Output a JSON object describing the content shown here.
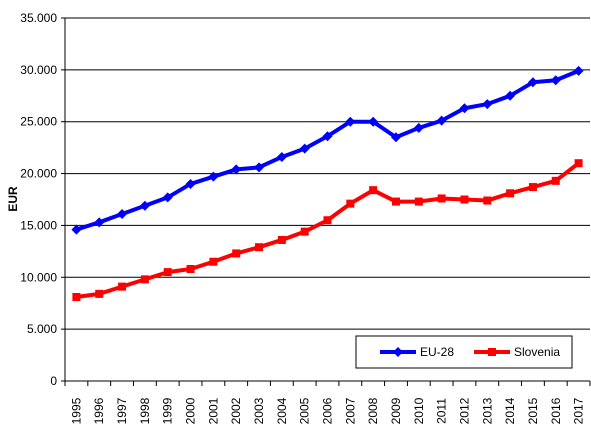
{
  "chart_data": {
    "type": "line",
    "title": "",
    "xlabel": "",
    "ylabel": "EUR",
    "ylim": [
      0,
      35000
    ],
    "y_ticks": [
      0,
      5000,
      10000,
      15000,
      20000,
      25000,
      30000,
      35000
    ],
    "y_tick_labels": [
      "0",
      "5.000",
      "10.000",
      "15.000",
      "20.000",
      "25.000",
      "30.000",
      "35.000"
    ],
    "grid": "horizontal",
    "legend_position": "bottom-right",
    "categories": [
      "1995",
      "1996",
      "1997",
      "1998",
      "1999",
      "2000",
      "2001",
      "2002",
      "2003",
      "2004",
      "2005",
      "2006",
      "2007",
      "2008",
      "2009",
      "2010",
      "2011",
      "2012",
      "2013",
      "2014",
      "2015",
      "2016",
      "2017"
    ],
    "series": [
      {
        "name": "EU-28",
        "color": "#0000ff",
        "marker": "diamond",
        "values": [
          14600,
          15300,
          16100,
          16900,
          17700,
          19000,
          19700,
          20400,
          20600,
          21600,
          22400,
          23600,
          25000,
          25000,
          23500,
          24400,
          25100,
          26300,
          26700,
          27500,
          28800,
          29000,
          29900
        ]
      },
      {
        "name": "Slovenia",
        "color": "#ff0000",
        "marker": "square",
        "values": [
          8100,
          8400,
          9100,
          9800,
          10500,
          10800,
          11500,
          12300,
          12900,
          13600,
          14400,
          15500,
          17100,
          18400,
          17300,
          17300,
          17600,
          17500,
          17400,
          18100,
          18700,
          19300,
          21000
        ]
      }
    ]
  }
}
